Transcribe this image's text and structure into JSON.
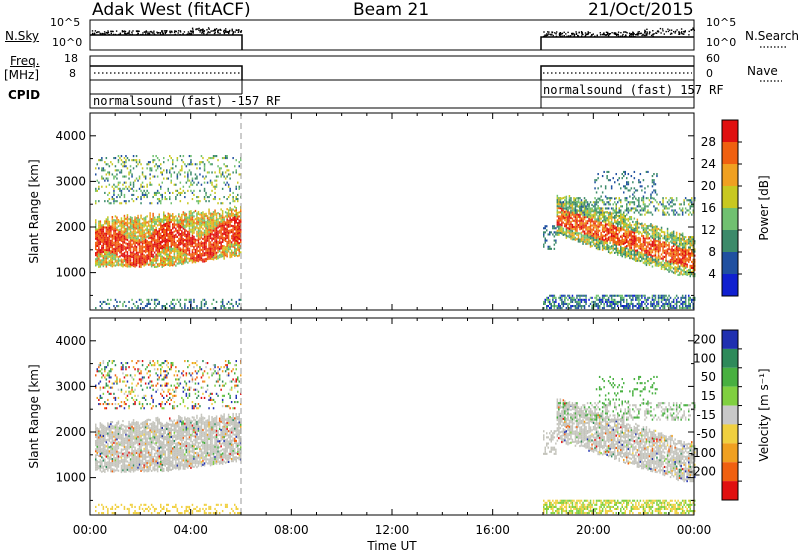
{
  "header": {
    "station": "Adak West (fitACF)",
    "beam": "Beam 21",
    "date": "21/Oct/2015"
  },
  "side_labels": {
    "nsky": "N.Sky",
    "freq": "Freq.",
    "mhz": "[MHz]",
    "cpid": "CPID",
    "nsearch": "N.Search",
    "nave": "Nave"
  },
  "small_panels": {
    "nsky_ticks": [
      "10^5",
      "10^0"
    ],
    "nsearch_ticks": [
      "10^5",
      "10^0"
    ],
    "freq_ticks": [
      "18",
      "8"
    ],
    "nave_ticks": [
      "60",
      "0"
    ],
    "cpid_left": "normalsound (fast) -157 RF",
    "cpid_right": "normalsound (fast) 157 RF"
  },
  "chart_data": [
    {
      "type": "heatmap",
      "name": "power",
      "ylabel": "Slant Range [km]",
      "xlabel": "Time UT",
      "x_range": [
        0,
        24
      ],
      "ylim": [
        180,
        4500
      ],
      "x_ticks": [
        "00:00",
        "04:00",
        "08:00",
        "12:00",
        "16:00",
        "20:00",
        "00:00"
      ],
      "y_ticks": [
        1000,
        2000,
        3000,
        4000
      ],
      "colorbar": {
        "label": "Power [dB]",
        "ticks": [
          4,
          8,
          12,
          16,
          20,
          24,
          28
        ],
        "range": [
          0,
          32
        ],
        "colors": [
          "#1020d0",
          "#2050a0",
          "#3c8a6a",
          "#70c070",
          "#c8c820",
          "#f0a020",
          "#f06010",
          "#e01010"
        ]
      },
      "data_gap_hours": [
        6.0,
        18.0
      ],
      "regions": [
        {
          "t0": 0.0,
          "t1": 6.0,
          "r0": 1050,
          "r1": 2100,
          "level": 28
        },
        {
          "t0": 0.0,
          "t1": 6.0,
          "r0": 1400,
          "r1": 2600,
          "level": 18
        },
        {
          "t0": 0.0,
          "t1": 6.0,
          "r0": 2700,
          "r1": 3600,
          "level": 10
        },
        {
          "t0": 18.0,
          "t1": 24.0,
          "r0": 1000,
          "r1": 2000,
          "level": 26
        },
        {
          "t0": 18.5,
          "t1": 24.0,
          "r0": 1600,
          "r1": 2500,
          "level": 14
        },
        {
          "t0": 18.0,
          "t1": 24.0,
          "r0": 200,
          "r1": 500,
          "level": 8
        }
      ]
    },
    {
      "type": "heatmap",
      "name": "velocity",
      "ylabel": "Slant Range [km]",
      "xlabel": "Time UT",
      "x_range": [
        0,
        24
      ],
      "ylim": [
        180,
        4500
      ],
      "x_ticks": [
        "00:00",
        "04:00",
        "08:00",
        "12:00",
        "16:00",
        "20:00",
        "00:00"
      ],
      "y_ticks": [
        1000,
        2000,
        3000,
        4000
      ],
      "colorbar": {
        "label": "Velocity [m s⁻¹]",
        "ticks": [
          200,
          100,
          50,
          15,
          -15,
          -50,
          -100,
          -200
        ],
        "colors": [
          "#2030b0",
          "#2e8a5a",
          "#48b040",
          "#80d040",
          "#c8c8c8",
          "#f0d040",
          "#f0a020",
          "#f06010",
          "#e01010"
        ]
      },
      "ground_scatter_color": "#c4c4bc",
      "data_gap_hours": [
        6.0,
        18.0
      ]
    }
  ]
}
